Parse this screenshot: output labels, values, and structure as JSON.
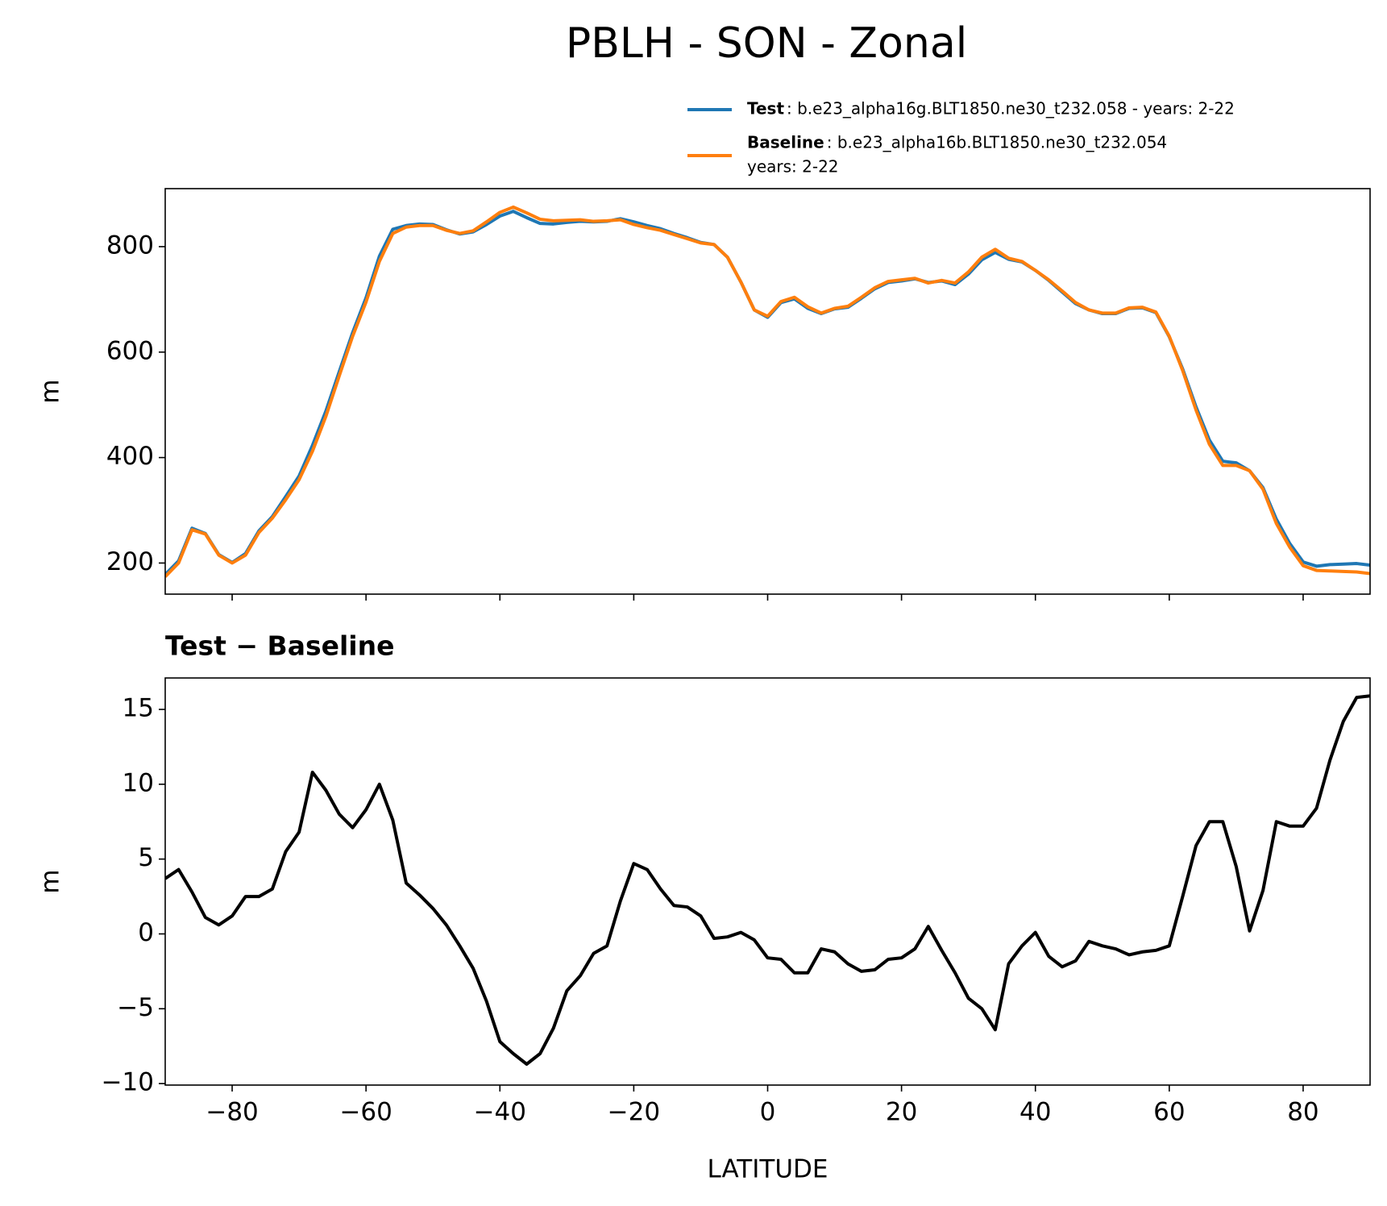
{
  "title": "PBLH - SON - Zonal",
  "chart_data": [
    {
      "type": "line",
      "ylabel": "m",
      "x": [
        -90,
        -88,
        -86,
        -84,
        -82,
        -80,
        -78,
        -76,
        -74,
        -72,
        -70,
        -68,
        -66,
        -64,
        -62,
        -60,
        -58,
        -56,
        -54,
        -52,
        -50,
        -48,
        -46,
        -44,
        -42,
        -40,
        -38,
        -36,
        -34,
        -32,
        -30,
        -28,
        -26,
        -24,
        -22,
        -20,
        -18,
        -16,
        -14,
        -12,
        -10,
        -8,
        -6,
        -4,
        -2,
        0,
        2,
        4,
        6,
        8,
        10,
        12,
        14,
        16,
        18,
        20,
        22,
        24,
        26,
        28,
        30,
        32,
        34,
        36,
        38,
        40,
        42,
        44,
        46,
        48,
        50,
        52,
        54,
        56,
        58,
        60,
        62,
        64,
        66,
        68,
        70,
        72,
        74,
        76,
        78,
        80,
        82,
        84,
        86,
        88,
        90
      ],
      "series": [
        {
          "name": "Test",
          "label": [
            ": b.e23_alpha16g.BLT1850.ne30_t232.058 - years: 2-22"
          ],
          "color": "#1f77b4",
          "values": [
            178,
            204,
            266,
            256,
            216,
            201,
            218,
            261,
            288,
            326,
            365,
            423,
            488,
            563,
            637,
            703,
            782,
            833,
            840,
            843,
            842,
            832,
            824,
            828,
            842,
            858,
            867,
            855,
            844,
            843,
            846,
            848,
            847,
            848,
            853,
            847,
            840,
            834,
            825,
            817,
            808,
            804,
            780,
            733,
            680,
            666,
            694,
            701,
            683,
            673,
            682,
            685,
            702,
            720,
            732,
            735,
            739,
            732,
            735,
            728,
            748,
            775,
            789,
            776,
            771,
            755,
            736,
            714,
            692,
            680,
            673,
            673,
            683,
            684,
            675,
            629,
            568,
            496,
            433,
            393,
            390,
            375,
            343,
            283,
            237,
            202,
            194,
            197,
            198,
            199,
            196
          ]
        },
        {
          "name": "Baseline",
          "label": [
            ": b.e23_alpha16b.BLT1850.ne30_t232.054",
            "years: 2-22"
          ],
          "color": "#ff7f0e",
          "values": [
            174,
            200,
            263,
            255,
            215,
            200,
            215,
            258,
            285,
            320,
            358,
            412,
            478,
            555,
            630,
            695,
            772,
            825,
            837,
            840,
            840,
            831,
            825,
            830,
            847,
            865,
            875,
            864,
            852,
            849,
            850,
            851,
            848,
            849,
            851,
            842,
            836,
            831,
            823,
            815,
            807,
            804,
            780,
            733,
            680,
            668,
            696,
            704,
            686,
            674,
            683,
            687,
            704,
            722,
            734,
            737,
            740,
            731,
            736,
            731,
            752,
            780,
            795,
            778,
            772,
            755,
            737,
            716,
            694,
            680,
            674,
            674,
            684,
            685,
            676,
            630,
            565,
            490,
            425,
            385,
            385,
            375,
            340,
            275,
            230,
            195,
            186,
            185,
            184,
            183,
            180
          ]
        }
      ],
      "xlim": [
        -90,
        90
      ],
      "xticks": [
        -80,
        -60,
        -40,
        -20,
        0,
        20,
        40,
        60,
        80
      ],
      "ylim": [
        141,
        910
      ],
      "yticks": [
        200,
        400,
        600,
        800
      ]
    },
    {
      "type": "line",
      "title": "Test − Baseline",
      "xlabel": "LATITUDE",
      "ylabel": "m",
      "x": [
        -90,
        -88,
        -86,
        -84,
        -82,
        -80,
        -78,
        -76,
        -74,
        -72,
        -70,
        -68,
        -66,
        -64,
        -62,
        -60,
        -58,
        -56,
        -54,
        -52,
        -50,
        -48,
        -46,
        -44,
        -42,
        -40,
        -38,
        -36,
        -34,
        -32,
        -30,
        -28,
        -26,
        -24,
        -22,
        -20,
        -18,
        -16,
        -14,
        -12,
        -10,
        -8,
        -6,
        -4,
        -2,
        0,
        2,
        4,
        6,
        8,
        10,
        12,
        14,
        16,
        18,
        20,
        22,
        24,
        26,
        28,
        30,
        32,
        34,
        36,
        38,
        40,
        42,
        44,
        46,
        48,
        50,
        52,
        54,
        56,
        58,
        60,
        62,
        64,
        66,
        68,
        70,
        72,
        74,
        76,
        78,
        80,
        82,
        84,
        86,
        88,
        90
      ],
      "series": [
        {
          "color": "#000000",
          "values": [
            3.7,
            4.3,
            2.8,
            1.1,
            0.6,
            1.2,
            2.5,
            2.5,
            3.0,
            5.5,
            6.8,
            10.8,
            9.6,
            8.0,
            7.1,
            8.3,
            10.0,
            7.6,
            3.4,
            2.6,
            1.7,
            0.6,
            -0.8,
            -2.3,
            -4.5,
            -7.2,
            -8.0,
            -8.7,
            -8.0,
            -6.3,
            -3.8,
            -2.8,
            -1.3,
            -0.8,
            2.2,
            4.7,
            4.3,
            3.0,
            1.9,
            1.8,
            1.2,
            -0.3,
            -0.2,
            0.1,
            -0.4,
            -1.6,
            -1.7,
            -2.6,
            -2.6,
            -1.0,
            -1.2,
            -2.0,
            -2.5,
            -2.4,
            -1.7,
            -1.6,
            -1.0,
            0.5,
            -1.1,
            -2.6,
            -4.3,
            -5.0,
            -6.4,
            -2.0,
            -0.8,
            0.1,
            -1.5,
            -2.2,
            -1.8,
            -0.5,
            -0.8,
            -1.0,
            -1.4,
            -1.2,
            -1.1,
            -0.8,
            2.5,
            5.9,
            7.5,
            7.5,
            4.5,
            0.2,
            2.9,
            7.5,
            7.2,
            7.2,
            8.4,
            11.6,
            14.2,
            15.8,
            15.9
          ]
        }
      ],
      "xlim": [
        -90,
        90
      ],
      "xticks": [
        {
          "value": -80,
          "label": "−80"
        },
        {
          "value": -60,
          "label": "−60"
        },
        {
          "value": -40,
          "label": "−40"
        },
        {
          "value": -20,
          "label": "−20"
        },
        0,
        20,
        40,
        60,
        80
      ],
      "ylim": [
        -10.1,
        17.1
      ],
      "yticks": [
        {
          "value": -10,
          "label": "−10"
        },
        {
          "value": -5,
          "label": "−5"
        },
        0,
        5,
        10,
        15
      ]
    }
  ]
}
